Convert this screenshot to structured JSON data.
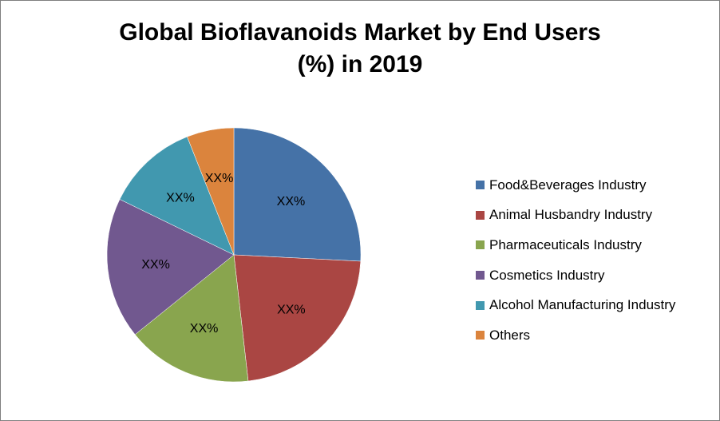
{
  "title_line1": "Global Bioflavanoids Market by End Users",
  "title_line2": "(%) in 2019",
  "chart_data": {
    "type": "pie",
    "title": "Global Bioflavanoids Market by End Users (%) in 2019",
    "legend_position": "right",
    "slices": [
      {
        "name": "Food&Beverages Industry",
        "value": 25.8,
        "label": "XX%",
        "color": "#4572A7"
      },
      {
        "name": "Animal Husbandry Industry",
        "value": 22.4,
        "label": "XX%",
        "color": "#AA4643"
      },
      {
        "name": "Pharmaceuticals Industry",
        "value": 16.0,
        "label": "XX%",
        "color": "#89A54E"
      },
      {
        "name": "Cosmetics Industry",
        "value": 18.0,
        "label": "XX%",
        "color": "#71588F"
      },
      {
        "name": "Alcohol Manufacturing Industry",
        "value": 11.8,
        "label": "XX%",
        "color": "#4198AF"
      },
      {
        "name": "Others",
        "value": 6.0,
        "label": "XX%",
        "color": "#DB843D"
      }
    ]
  }
}
